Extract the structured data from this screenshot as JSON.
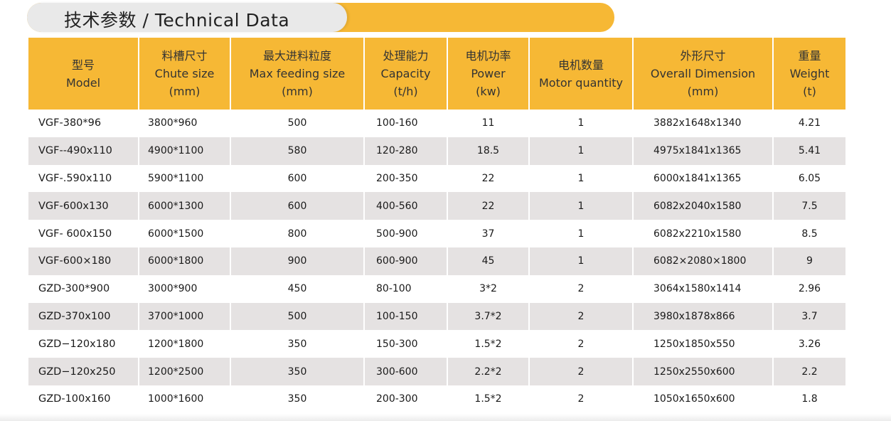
{
  "title": "技术参数 / Technical Data",
  "headers": [
    {
      "zh": "型号",
      "en": "Model",
      "unit": ""
    },
    {
      "zh": "料槽尺寸",
      "en": "Chute size",
      "unit": "(mm)"
    },
    {
      "zh": "最大进料粒度",
      "en": "Max feeding size",
      "unit": "(mm)"
    },
    {
      "zh": "处理能力",
      "en": "Capacity",
      "unit": "(t/h)"
    },
    {
      "zh": "电机功率",
      "en": "Power",
      "unit": "(kw)"
    },
    {
      "zh": "电机数量",
      "en": "Motor quantity",
      "unit": ""
    },
    {
      "zh": "外形尺寸",
      "en": "Overall Dimension",
      "unit": "(mm)"
    },
    {
      "zh": "重量",
      "en": "Weight",
      "unit": "(t)"
    }
  ],
  "rows": [
    {
      "model": "VGF-380*96",
      "chute": "3800*960",
      "feed": "500",
      "capacity": "100-160",
      "power": "11",
      "motors": "1",
      "dimension": "3882x1648x1340",
      "weight": "4.21"
    },
    {
      "model": "VGF--490x110",
      "chute": "4900*1100",
      "feed": "580",
      "capacity": "120-280",
      "power": "18.5",
      "motors": "1",
      "dimension": "4975x1841x1365",
      "weight": "5.41"
    },
    {
      "model": "VGF-.590x110",
      "chute": "5900*1100",
      "feed": "600",
      "capacity": "200-350",
      "power": "22",
      "motors": "1",
      "dimension": "6000x1841x1365",
      "weight": "6.05"
    },
    {
      "model": "VGF-600x130",
      "chute": "6000*1300",
      "feed": "600",
      "capacity": "400-560",
      "power": "22",
      "motors": "1",
      "dimension": "6082x2040x1580",
      "weight": "7.5"
    },
    {
      "model": "VGF- 600x150",
      "chute": "6000*1500",
      "feed": "800",
      "capacity": "500-900",
      "power": "37",
      "motors": "1",
      "dimension": "6082x2210x1580",
      "weight": "8.5"
    },
    {
      "model": "VGF-600×180",
      "chute": "6000*1800",
      "feed": "900",
      "capacity": "600-900",
      "power": "45",
      "motors": "1",
      "dimension": "6082×2080×1800",
      "weight": "9"
    },
    {
      "model": "GZD-300*900",
      "chute": "3000*900",
      "feed": "450",
      "capacity": "80-100",
      "power": "3*2",
      "motors": "2",
      "dimension": "3064x1580x1414",
      "weight": "2.96"
    },
    {
      "model": "GZD-370x100",
      "chute": "3700*1000",
      "feed": "500",
      "capacity": "100-150",
      "power": "3.7*2",
      "motors": "2",
      "dimension": "3980x1878x866",
      "weight": "3.7"
    },
    {
      "model": "GZD−120x180",
      "chute": "1200*1800",
      "feed": "350",
      "capacity": "150-300",
      "power": "1.5*2",
      "motors": "2",
      "dimension": "1250x1850x550",
      "weight": "3.26"
    },
    {
      "model": "GZD−120x250",
      "chute": "1200*2500",
      "feed": "350",
      "capacity": "300-600",
      "power": "2.2*2",
      "motors": "2",
      "dimension": "1250x2550x600",
      "weight": "2.2"
    },
    {
      "model": "GZD-100x160",
      "chute": "1000*1600",
      "feed": "350",
      "capacity": "200-300",
      "power": "1.5*2",
      "motors": "2",
      "dimension": "1050x1650x600",
      "weight": "1.8"
    }
  ],
  "colors": {
    "accent": "#f6b835",
    "stripe": "#e5e2e2",
    "title_pill": "#e9e9e9"
  }
}
